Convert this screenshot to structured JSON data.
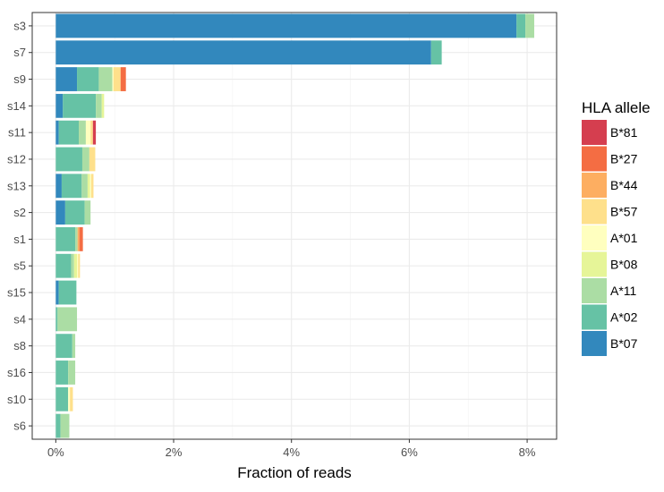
{
  "chart_data": {
    "type": "bar",
    "orientation": "horizontal",
    "stacked": true,
    "xlabel": "Fraction of reads",
    "x_tick_format": "percent",
    "xlim": [
      -0.4,
      8.5
    ],
    "x_ticks": [
      0,
      2,
      4,
      6,
      8
    ],
    "x_tick_labels": [
      "0%",
      "2%",
      "4%",
      "6%",
      "8%"
    ],
    "grid": true,
    "legend": {
      "title": "HLA allele",
      "placement": "right",
      "items": [
        {
          "name": "B*81",
          "color": "#D53E4F"
        },
        {
          "name": "B*27",
          "color": "#F46D43"
        },
        {
          "name": "B*44",
          "color": "#FDAE61"
        },
        {
          "name": "B*57",
          "color": "#FEE08B"
        },
        {
          "name": "A*01",
          "color": "#FFFFBF"
        },
        {
          "name": "B*08",
          "color": "#E6F598"
        },
        {
          "name": "A*11",
          "color": "#ABDDA4"
        },
        {
          "name": "A*02",
          "color": "#66C2A5"
        },
        {
          "name": "B*07",
          "color": "#3288BD"
        }
      ]
    },
    "stack_order": [
      "B*07",
      "A*02",
      "A*11",
      "B*08",
      "A*01",
      "B*57",
      "B*44",
      "B*27",
      "B*81"
    ],
    "categories": [
      "s3",
      "s7",
      "s9",
      "s14",
      "s11",
      "s12",
      "s13",
      "s2",
      "s1",
      "s5",
      "s15",
      "s4",
      "s8",
      "s16",
      "s10",
      "s6"
    ],
    "series": [
      {
        "name": "B*07",
        "values": [
          7.82,
          6.37,
          0.36,
          0.12,
          0.05,
          0.0,
          0.1,
          0.16,
          0.0,
          0.0,
          0.05,
          0.0,
          0.0,
          0.0,
          0.0,
          0.0
        ]
      },
      {
        "name": "A*02",
        "values": [
          0.15,
          0.18,
          0.37,
          0.56,
          0.34,
          0.45,
          0.34,
          0.33,
          0.33,
          0.26,
          0.3,
          0.03,
          0.28,
          0.21,
          0.21,
          0.08
        ]
      },
      {
        "name": "A*11",
        "values": [
          0.15,
          0.0,
          0.23,
          0.1,
          0.12,
          0.12,
          0.1,
          0.1,
          0.04,
          0.05,
          0.0,
          0.33,
          0.05,
          0.12,
          0.0,
          0.15
        ]
      },
      {
        "name": "B*08",
        "values": [
          0.0,
          0.0,
          0.0,
          0.04,
          0.0,
          0.0,
          0.04,
          0.0,
          0.0,
          0.05,
          0.0,
          0.0,
          0.0,
          0.0,
          0.0,
          0.0
        ]
      },
      {
        "name": "A*01",
        "values": [
          0.0,
          0.0,
          0.02,
          0.0,
          0.08,
          0.0,
          0.02,
          0.0,
          0.0,
          0.02,
          0.0,
          0.0,
          0.0,
          0.0,
          0.03,
          0.0
        ]
      },
      {
        "name": "B*57",
        "values": [
          0.0,
          0.0,
          0.12,
          0.0,
          0.04,
          0.1,
          0.04,
          0.0,
          0.0,
          0.03,
          0.0,
          0.0,
          0.0,
          0.0,
          0.05,
          0.0
        ]
      },
      {
        "name": "B*44",
        "values": [
          0.0,
          0.0,
          0.0,
          0.0,
          0.0,
          0.0,
          0.0,
          0.0,
          0.03,
          0.0,
          0.0,
          0.0,
          0.0,
          0.0,
          0.0,
          0.0
        ]
      },
      {
        "name": "B*27",
        "values": [
          0.0,
          0.0,
          0.09,
          0.0,
          0.0,
          0.0,
          0.0,
          0.0,
          0.06,
          0.0,
          0.0,
          0.0,
          0.0,
          0.0,
          0.0,
          0.0
        ]
      },
      {
        "name": "B*81",
        "values": [
          0.0,
          0.0,
          0.0,
          0.0,
          0.05,
          0.0,
          0.0,
          0.0,
          0.0,
          0.0,
          0.0,
          0.0,
          0.0,
          0.0,
          0.0,
          0.0
        ]
      }
    ]
  }
}
